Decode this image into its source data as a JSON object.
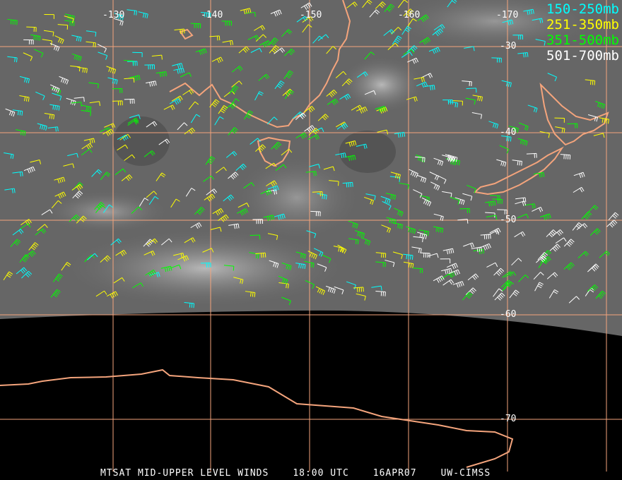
{
  "legend": [
    {
      "label": "150-250mb",
      "color": "#00ffff"
    },
    {
      "label": "251-350mb",
      "color": "#ffff00"
    },
    {
      "label": "351-500mb",
      "color": "#00ff00"
    },
    {
      "label": "501-700mb",
      "color": "#ffffff"
    }
  ],
  "longitude_labels": [
    "-130",
    "-140",
    "-150",
    "-160",
    "-170"
  ],
  "latitude_labels": [
    "-30",
    "-40",
    "-50",
    "-60",
    "-70"
  ],
  "footer": {
    "title": "MTSAT MID-UPPER LEVEL WINDS",
    "time": "18:00 UTC",
    "date": "16APR07",
    "source": "UW-CIMSS"
  },
  "colors": {
    "grid": "#f4a47c",
    "coast": "#f4a47c",
    "space": "#000000"
  }
}
